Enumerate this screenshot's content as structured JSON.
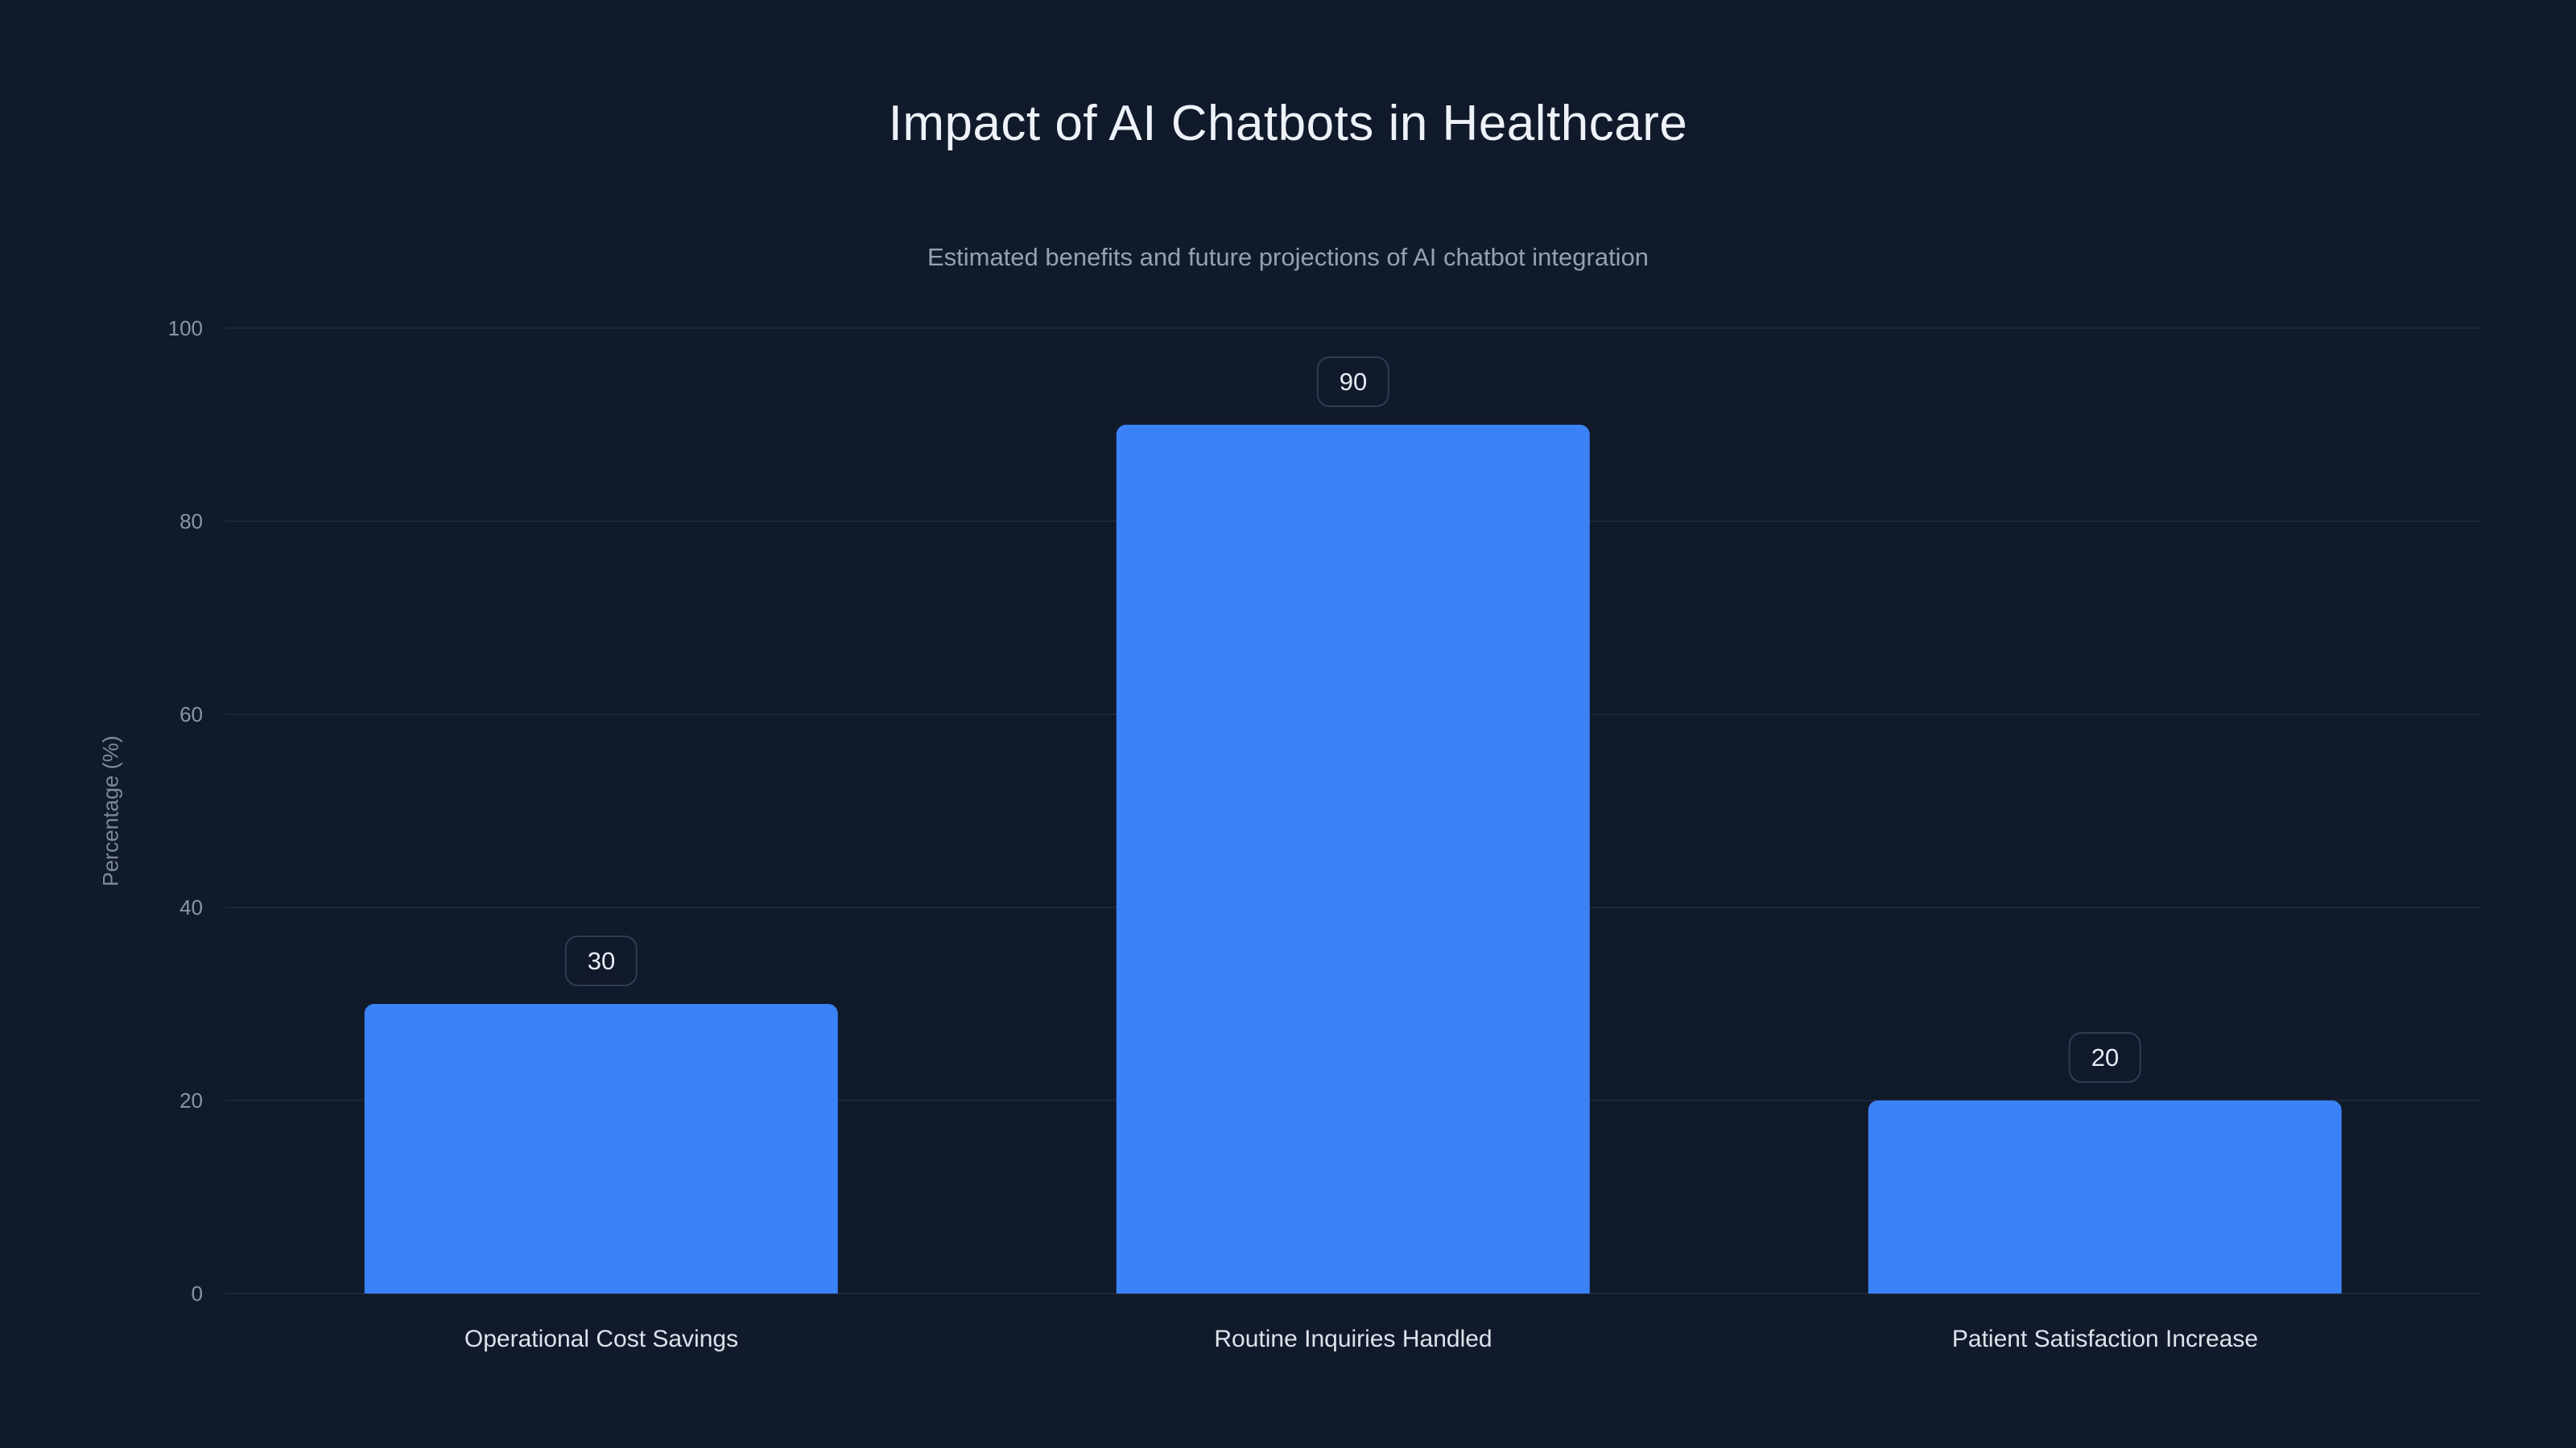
{
  "chart_data": {
    "type": "bar",
    "title": "Impact of AI Chatbots in Healthcare",
    "subtitle": "Estimated benefits and future projections of AI chatbot integration",
    "categories": [
      "Operational Cost Savings",
      "Routine Inquiries Handled",
      "Patient Satisfaction Increase"
    ],
    "values": [
      30,
      90,
      20
    ],
    "value_labels": [
      "30",
      "90",
      "20"
    ],
    "xlabel": "",
    "ylabel": "Percentage (%)",
    "ylim": [
      0,
      100
    ],
    "yticks": [
      0,
      20,
      40,
      60,
      80,
      100
    ],
    "grid": true,
    "legend": false,
    "bar_color": "#3b82f6",
    "background": "#111a2b",
    "gridline_color": "#1d2739",
    "badge_border_color": "#303c52",
    "title_color": "#eef2f8",
    "subtitle_color": "#95a0b1",
    "tick_color": "#8a94a6"
  }
}
